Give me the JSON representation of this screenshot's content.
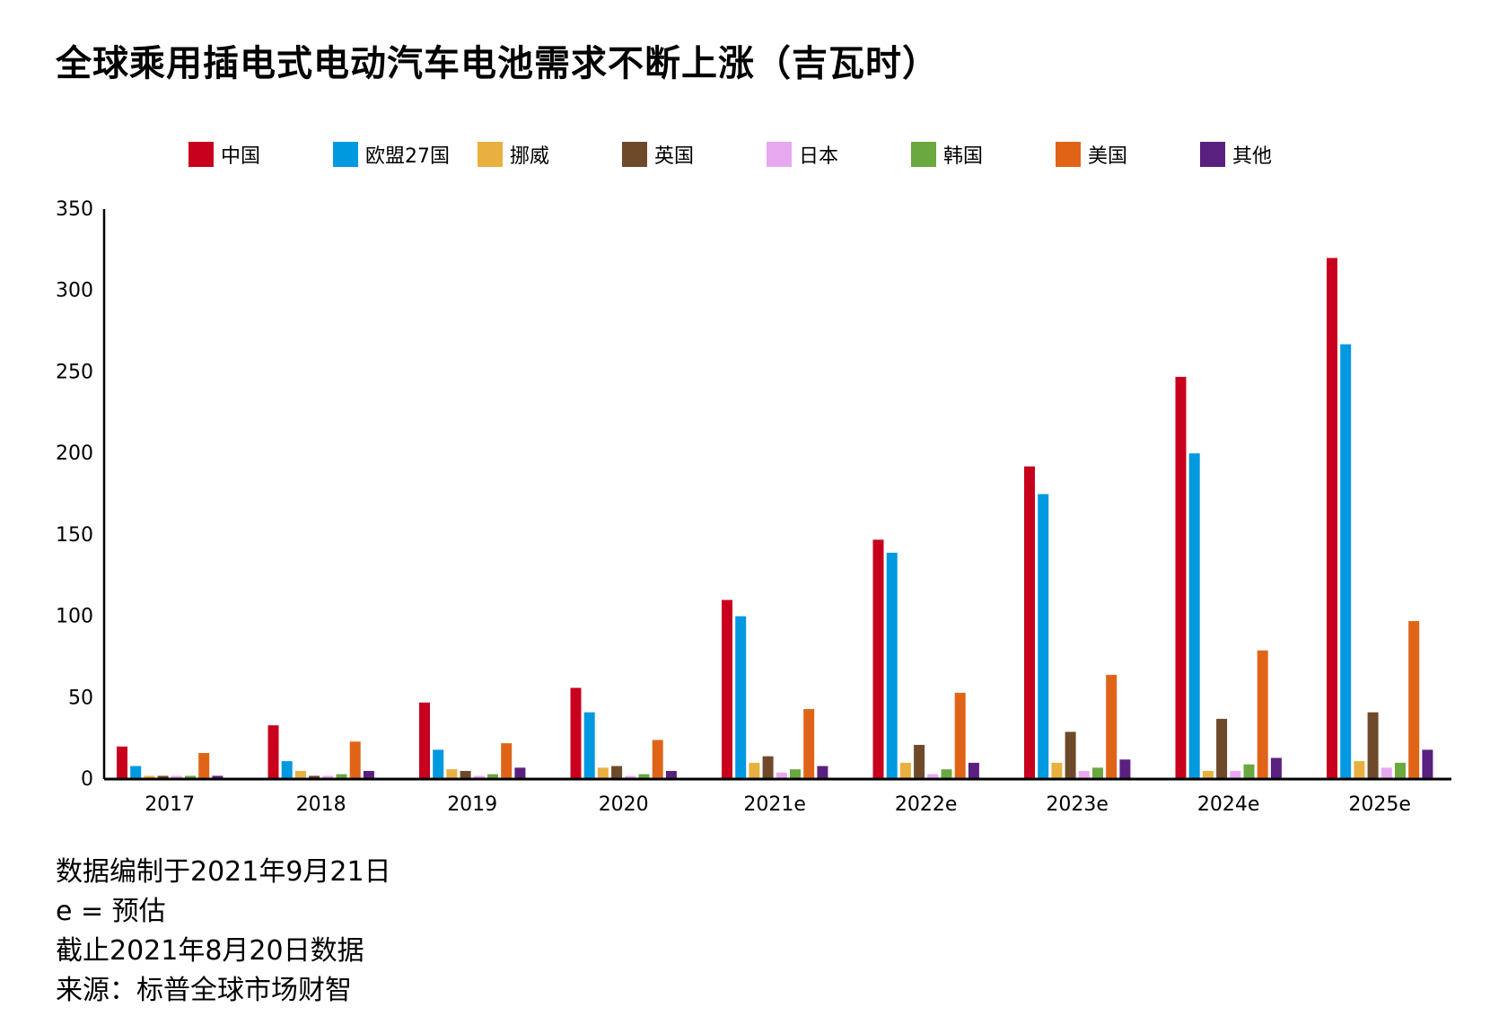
{
  "title": "全球乘用插电式电动汽车电池需求不断上涨（吉瓦时）",
  "notes": [
    "数据编制于2021年9月21日",
    "e = 预估",
    "截止2021年8月20日数据",
    "来源：标普全球市场财智"
  ],
  "chart_data": {
    "type": "bar",
    "title": "全球乘用插电式电动汽车电池需求不断上涨（吉瓦时）",
    "xlabel": "",
    "ylabel": "",
    "ylim": [
      0,
      350
    ],
    "yticks": [
      0,
      50,
      100,
      150,
      200,
      250,
      300,
      350
    ],
    "grid": false,
    "legend_position": "top",
    "categories": [
      "2017",
      "2018",
      "2019",
      "2020",
      "2021e",
      "2022e",
      "2023e",
      "2024e",
      "2025e"
    ],
    "series": [
      {
        "name": "中国",
        "color": "#c8001e",
        "values": [
          20,
          33,
          47,
          56,
          110,
          147,
          192,
          247,
          320
        ]
      },
      {
        "name": "欧盟27国",
        "color": "#0099e0",
        "values": [
          8,
          11,
          18,
          41,
          100,
          139,
          175,
          200,
          267
        ]
      },
      {
        "name": "挪威",
        "color": "#e8b040",
        "values": [
          2,
          5,
          6,
          7,
          10,
          10,
          10,
          5,
          11
        ]
      },
      {
        "name": "英国",
        "color": "#6e4a2a",
        "values": [
          2,
          2,
          5,
          8,
          14,
          21,
          29,
          37,
          41
        ]
      },
      {
        "name": "日本",
        "color": "#e8a8f0",
        "values": [
          2,
          2,
          2,
          2,
          4,
          3,
          5,
          5,
          7
        ]
      },
      {
        "name": "韩国",
        "color": "#6aa840",
        "values": [
          2,
          3,
          3,
          3,
          6,
          6,
          7,
          9,
          10
        ]
      },
      {
        "name": "美国",
        "color": "#e06418",
        "values": [
          16,
          23,
          22,
          24,
          43,
          53,
          64,
          79,
          97
        ]
      },
      {
        "name": "其他",
        "color": "#5a2080",
        "values": [
          2,
          5,
          7,
          5,
          8,
          10,
          12,
          13,
          18
        ]
      }
    ]
  }
}
